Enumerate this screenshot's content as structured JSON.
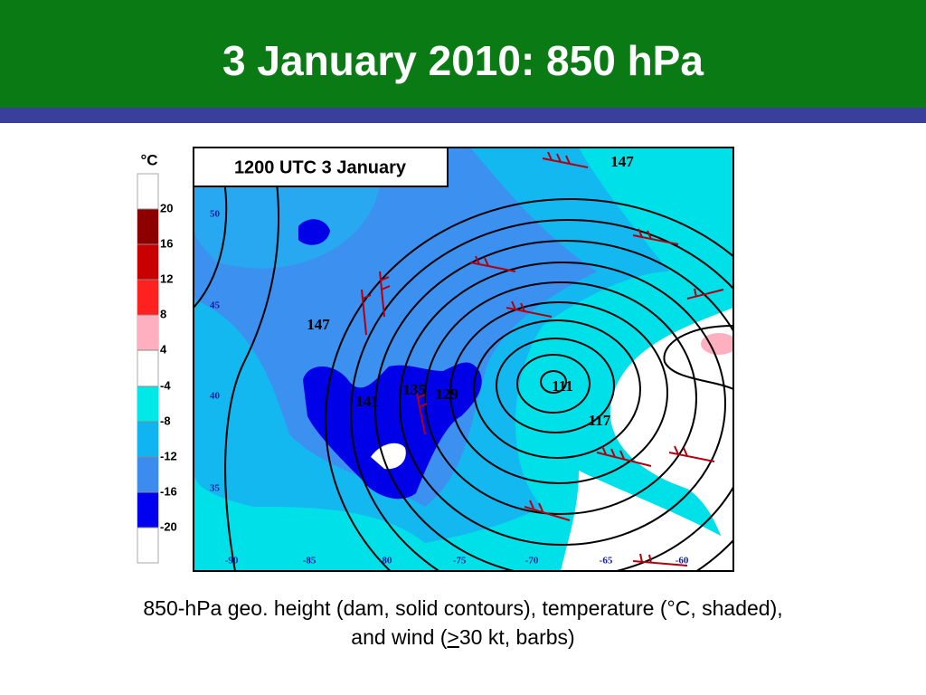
{
  "title": "3 January 2010: 850 hPa",
  "panel_label": "1200 UTC 3 January",
  "colorbar": {
    "unit": "°C",
    "ticks": [
      20,
      16,
      12,
      8,
      4,
      -4,
      -8,
      -12,
      -16,
      -20
    ]
  },
  "map": {
    "contour_labels": [
      "147",
      "147",
      "141",
      "135",
      "129",
      "111",
      "117"
    ],
    "lat_labels": [
      "50",
      "45",
      "40",
      "35"
    ],
    "lon_labels": [
      "-90",
      "-85",
      "-80",
      "-75",
      "-70",
      "-65",
      "-60"
    ]
  },
  "caption": {
    "line1": "850-hPa geo. height (dam, solid contours), temperature (°C, shaded),",
    "line2_before": "and wind (",
    "line2_symbol": ">",
    "line2_after": "30 kt, barbs)"
  }
}
